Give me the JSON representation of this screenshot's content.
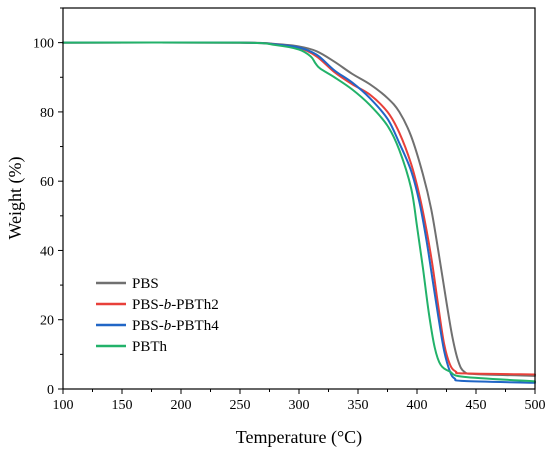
{
  "chart_data": {
    "type": "line",
    "title": "",
    "xlabel": "Temperature (°C)",
    "ylabel": "Weight (%)",
    "xlim": [
      100,
      500
    ],
    "ylim": [
      0,
      110
    ],
    "xticks": [
      "100",
      "150",
      "200",
      "250",
      "300",
      "350",
      "400",
      "450",
      "500"
    ],
    "yticks": [
      "0",
      "20",
      "40",
      "60",
      "80",
      "100"
    ],
    "grid": false,
    "legend_position": "bottom-left",
    "series": [
      {
        "name": "PBS",
        "color": "#707070",
        "points": [
          [
            100,
            100
          ],
          [
            250,
            100
          ],
          [
            280,
            99.6
          ],
          [
            300,
            98.9
          ],
          [
            315,
            97.5
          ],
          [
            330,
            94.5
          ],
          [
            345,
            91
          ],
          [
            360,
            88
          ],
          [
            375,
            84
          ],
          [
            385,
            80
          ],
          [
            395,
            73
          ],
          [
            405,
            62
          ],
          [
            412,
            52
          ],
          [
            418,
            40
          ],
          [
            425,
            25
          ],
          [
            430,
            15
          ],
          [
            435,
            8
          ],
          [
            440,
            5
          ],
          [
            450,
            4.3
          ],
          [
            500,
            3.8
          ]
        ]
      },
      {
        "name": "PBS-b-PBTh2",
        "color": "#e8403a",
        "points": [
          [
            100,
            100
          ],
          [
            250,
            100
          ],
          [
            280,
            99.5
          ],
          [
            300,
            98.5
          ],
          [
            315,
            96
          ],
          [
            330,
            91.5
          ],
          [
            345,
            88
          ],
          [
            360,
            85
          ],
          [
            375,
            80
          ],
          [
            385,
            74
          ],
          [
            395,
            65
          ],
          [
            402,
            56
          ],
          [
            408,
            46
          ],
          [
            413,
            36
          ],
          [
            418,
            24
          ],
          [
            423,
            13
          ],
          [
            428,
            7
          ],
          [
            433,
            5
          ],
          [
            440,
            4.5
          ],
          [
            500,
            4.2
          ]
        ]
      },
      {
        "name": "PBS-b-PBTh4",
        "color": "#2166c6",
        "points": [
          [
            100,
            100
          ],
          [
            250,
            100
          ],
          [
            280,
            99.5
          ],
          [
            300,
            98.6
          ],
          [
            315,
            96.5
          ],
          [
            330,
            92
          ],
          [
            345,
            88.5
          ],
          [
            360,
            84
          ],
          [
            375,
            78
          ],
          [
            385,
            71
          ],
          [
            395,
            63
          ],
          [
            402,
            54
          ],
          [
            408,
            43
          ],
          [
            413,
            32
          ],
          [
            418,
            21
          ],
          [
            423,
            11
          ],
          [
            428,
            5
          ],
          [
            432,
            3
          ],
          [
            440,
            2.3
          ],
          [
            500,
            1.8
          ]
        ]
      },
      {
        "name": "PBTh",
        "color": "#22b26a",
        "points": [
          [
            100,
            100
          ],
          [
            250,
            100
          ],
          [
            280,
            99.3
          ],
          [
            300,
            98
          ],
          [
            310,
            96
          ],
          [
            314,
            94
          ],
          [
            318,
            92.5
          ],
          [
            330,
            90
          ],
          [
            345,
            86.5
          ],
          [
            360,
            82
          ],
          [
            375,
            76
          ],
          [
            385,
            69
          ],
          [
            395,
            58
          ],
          [
            400,
            47
          ],
          [
            405,
            35
          ],
          [
            410,
            22
          ],
          [
            415,
            12
          ],
          [
            420,
            7
          ],
          [
            428,
            5
          ],
          [
            440,
            3.5
          ],
          [
            500,
            2.2
          ]
        ]
      }
    ]
  }
}
